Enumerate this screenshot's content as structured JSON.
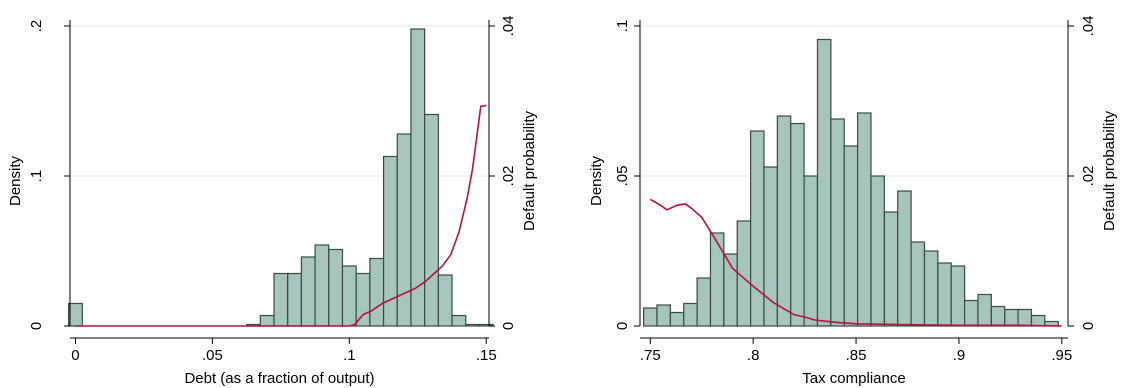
{
  "colors": {
    "bar_fill": "#a7c4bd",
    "bar_stroke": "#3a4a45",
    "curve": "#b3133d",
    "grid": "#e6e6e6"
  },
  "chart_data": [
    {
      "type": "bar",
      "name": "debt-histogram",
      "xlabel": "Debt (as a fraction of output)",
      "ylabel": "Density",
      "y2label": "Default probability",
      "xlim": [
        -0.002,
        0.151
      ],
      "ylim": [
        0,
        0.2
      ],
      "y2lim": [
        0,
        0.04
      ],
      "grid": true,
      "xticks": [
        0,
        0.05,
        0.1,
        0.15
      ],
      "xtick_labels": [
        "0",
        ".05",
        ".1",
        ".15"
      ],
      "yticks": [
        0,
        0.1,
        0.2
      ],
      "ytick_labels": [
        "0",
        ".1",
        ".2"
      ],
      "y2ticks": [
        0,
        0.02,
        0.04
      ],
      "y2tick_labels": [
        "0",
        ".02",
        ".04"
      ],
      "bin_width": 0.005,
      "bars": [
        {
          "x": 0.0,
          "y": 0.015
        },
        {
          "x": 0.065,
          "y": 0.001
        },
        {
          "x": 0.07,
          "y": 0.007
        },
        {
          "x": 0.075,
          "y": 0.035
        },
        {
          "x": 0.08,
          "y": 0.035
        },
        {
          "x": 0.085,
          "y": 0.046
        },
        {
          "x": 0.09,
          "y": 0.054
        },
        {
          "x": 0.095,
          "y": 0.051
        },
        {
          "x": 0.1,
          "y": 0.04
        },
        {
          "x": 0.105,
          "y": 0.035
        },
        {
          "x": 0.11,
          "y": 0.045
        },
        {
          "x": 0.115,
          "y": 0.113
        },
        {
          "x": 0.12,
          "y": 0.128
        },
        {
          "x": 0.125,
          "y": 0.198
        },
        {
          "x": 0.13,
          "y": 0.141
        },
        {
          "x": 0.135,
          "y": 0.034
        },
        {
          "x": 0.14,
          "y": 0.007
        },
        {
          "x": 0.145,
          "y": 0.001
        },
        {
          "x": 0.15,
          "y": 0.001
        }
      ],
      "line": {
        "x": [
          0,
          0.05,
          0.08,
          0.1,
          0.102,
          0.105,
          0.108,
          0.112,
          0.118,
          0.124,
          0.128,
          0.131,
          0.134,
          0.137,
          0.14,
          0.143,
          0.145,
          0.148,
          0.15
        ],
        "y": [
          0,
          0,
          0,
          0,
          0.0002,
          0.0015,
          0.002,
          0.003,
          0.004,
          0.005,
          0.006,
          0.007,
          0.008,
          0.0095,
          0.0125,
          0.017,
          0.021,
          0.0293,
          0.0294
        ]
      }
    },
    {
      "type": "bar",
      "name": "tax-histogram",
      "xlabel": "Tax compliance",
      "ylabel": "Density",
      "y2label": "Default probability",
      "xlim": [
        0.745,
        0.953
      ],
      "ylim": [
        0,
        0.1
      ],
      "y2lim": [
        0,
        0.04
      ],
      "grid": true,
      "xticks": [
        0.75,
        0.8,
        0.85,
        0.9,
        0.95
      ],
      "xtick_labels": [
        ".75",
        ".8",
        ".85",
        ".9",
        ".95"
      ],
      "yticks": [
        0,
        0.05,
        0.1
      ],
      "ytick_labels": [
        "0",
        ".05",
        ".1"
      ],
      "y2ticks": [
        0,
        0.02,
        0.04
      ],
      "y2tick_labels": [
        "0",
        ".02",
        ".04"
      ],
      "bin_width": 0.0065,
      "bars": [
        {
          "x": 0.75,
          "y": 0.006
        },
        {
          "x": 0.7565,
          "y": 0.007
        },
        {
          "x": 0.763,
          "y": 0.0045
        },
        {
          "x": 0.7695,
          "y": 0.0075
        },
        {
          "x": 0.776,
          "y": 0.016
        },
        {
          "x": 0.7825,
          "y": 0.031
        },
        {
          "x": 0.789,
          "y": 0.024
        },
        {
          "x": 0.7955,
          "y": 0.035
        },
        {
          "x": 0.802,
          "y": 0.065
        },
        {
          "x": 0.8085,
          "y": 0.053
        },
        {
          "x": 0.815,
          "y": 0.07
        },
        {
          "x": 0.8215,
          "y": 0.0675
        },
        {
          "x": 0.828,
          "y": 0.05
        },
        {
          "x": 0.8345,
          "y": 0.0955
        },
        {
          "x": 0.841,
          "y": 0.069
        },
        {
          "x": 0.8475,
          "y": 0.06
        },
        {
          "x": 0.854,
          "y": 0.071
        },
        {
          "x": 0.8605,
          "y": 0.05
        },
        {
          "x": 0.867,
          "y": 0.038
        },
        {
          "x": 0.8735,
          "y": 0.045
        },
        {
          "x": 0.88,
          "y": 0.028
        },
        {
          "x": 0.8865,
          "y": 0.025
        },
        {
          "x": 0.893,
          "y": 0.021
        },
        {
          "x": 0.8995,
          "y": 0.02
        },
        {
          "x": 0.906,
          "y": 0.0085
        },
        {
          "x": 0.9125,
          "y": 0.0105
        },
        {
          "x": 0.919,
          "y": 0.0065
        },
        {
          "x": 0.9255,
          "y": 0.0055
        },
        {
          "x": 0.932,
          "y": 0.0055
        },
        {
          "x": 0.9385,
          "y": 0.0035
        },
        {
          "x": 0.945,
          "y": 0.0015
        }
      ],
      "line": {
        "x": [
          0.75,
          0.755,
          0.758,
          0.763,
          0.767,
          0.77,
          0.775,
          0.78,
          0.785,
          0.79,
          0.8,
          0.81,
          0.82,
          0.825,
          0.83,
          0.84,
          0.85,
          0.87,
          0.9,
          0.93,
          0.95
        ],
        "y": [
          0.0169,
          0.0161,
          0.0155,
          0.0161,
          0.0163,
          0.0157,
          0.0145,
          0.0123,
          0.01,
          0.0077,
          0.0053,
          0.0031,
          0.0015,
          0.0012,
          0.0008,
          0.0005,
          0.0003,
          0.0002,
          0.0001,
          0.0001,
          0
        ]
      }
    }
  ]
}
